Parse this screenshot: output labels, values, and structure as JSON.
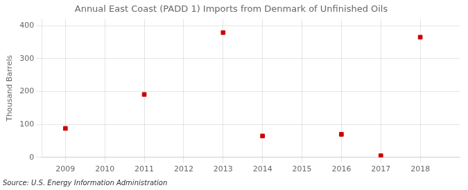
{
  "chart_data": {
    "type": "scatter",
    "title": "Annual East Coast (PADD 1) Imports from Denmark of Unfinished Oils",
    "y_label": "Thousand Barrels",
    "annotations": [
      "Source: U.S. Energy Information Administration"
    ],
    "x": [
      2009,
      2011,
      2013,
      2014,
      2016,
      2017,
      2018
    ],
    "values": [
      88,
      191,
      379,
      65,
      70,
      5,
      365
    ],
    "color": "#cc0000",
    "marker": "square",
    "xlim": [
      2008.4,
      2019.0
    ],
    "xticks": [
      2009,
      2010,
      2011,
      2012,
      2013,
      2014,
      2015,
      2016,
      2017,
      2018
    ],
    "ylim": [
      0,
      420
    ],
    "yticks": [
      0,
      100,
      200,
      300,
      400
    ],
    "grid": true
  }
}
